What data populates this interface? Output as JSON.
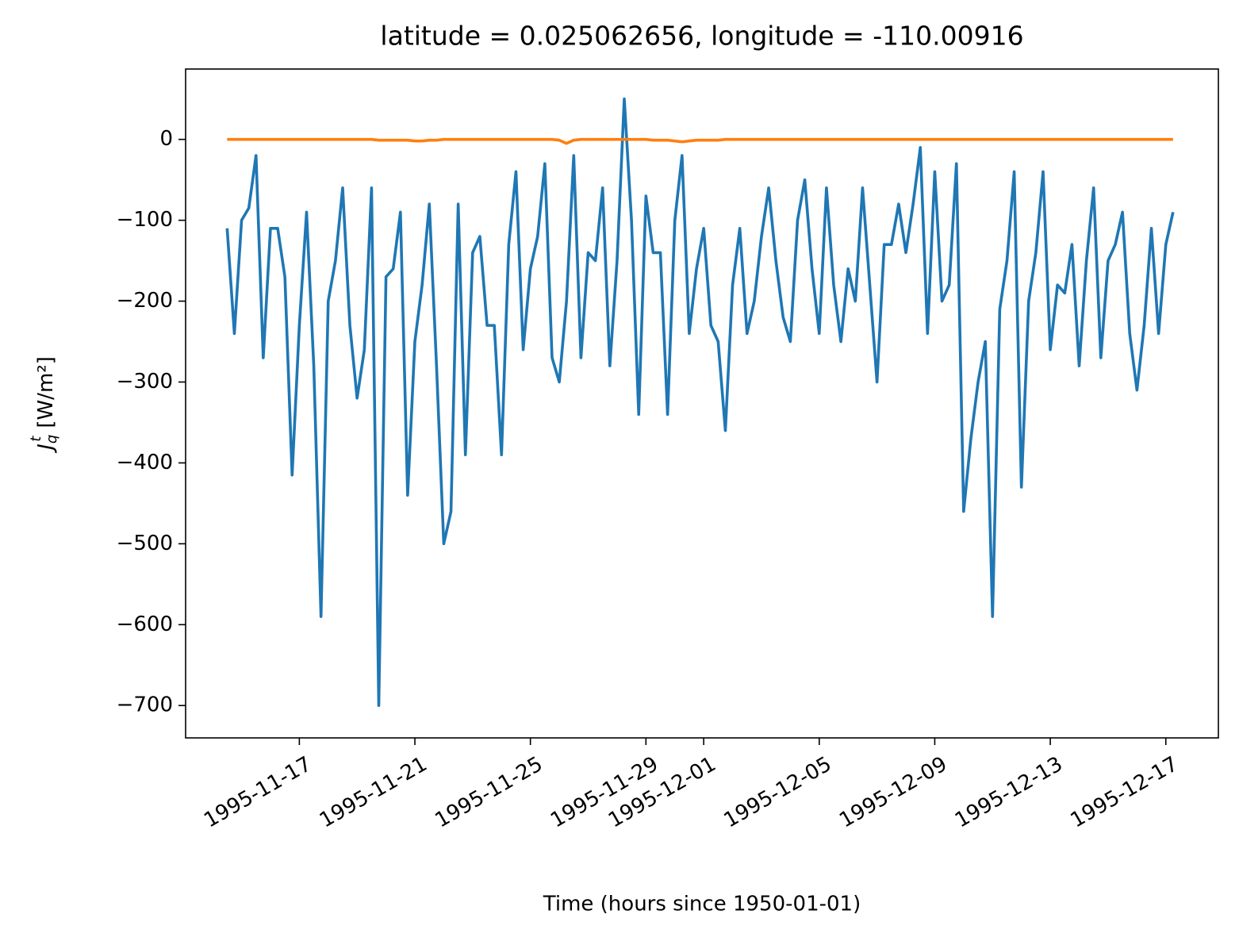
{
  "chart_data": {
    "type": "line",
    "title": "latitude = 0.025062656, longitude = -110.00916",
    "xlabel": "Time (hours since 1950-01-01)",
    "ylabel": {
      "symbol": "J",
      "sub": "q",
      "sup": "t",
      "unit": "[W/m²]"
    },
    "x": [
      "1995-11-14 12:00",
      "1995-11-14 18:00",
      "1995-11-15 00:00",
      "1995-11-15 06:00",
      "1995-11-15 12:00",
      "1995-11-15 18:00",
      "1995-11-16 00:00",
      "1995-11-16 06:00",
      "1995-11-16 12:00",
      "1995-11-16 18:00",
      "1995-11-17 00:00",
      "1995-11-17 06:00",
      "1995-11-17 12:00",
      "1995-11-17 18:00",
      "1995-11-18 00:00",
      "1995-11-18 06:00",
      "1995-11-18 12:00",
      "1995-11-18 18:00",
      "1995-11-19 00:00",
      "1995-11-19 06:00",
      "1995-11-19 12:00",
      "1995-11-19 18:00",
      "1995-11-20 00:00",
      "1995-11-20 06:00",
      "1995-11-20 12:00",
      "1995-11-20 18:00",
      "1995-11-21 00:00",
      "1995-11-21 06:00",
      "1995-11-21 12:00",
      "1995-11-21 18:00",
      "1995-11-22 00:00",
      "1995-11-22 06:00",
      "1995-11-22 12:00",
      "1995-11-22 18:00",
      "1995-11-23 00:00",
      "1995-11-23 06:00",
      "1995-11-23 12:00",
      "1995-11-23 18:00",
      "1995-11-24 00:00",
      "1995-11-24 06:00",
      "1995-11-24 12:00",
      "1995-11-24 18:00",
      "1995-11-25 00:00",
      "1995-11-25 06:00",
      "1995-11-25 12:00",
      "1995-11-25 18:00",
      "1995-11-26 00:00",
      "1995-11-26 06:00",
      "1995-11-26 12:00",
      "1995-11-26 18:00",
      "1995-11-27 00:00",
      "1995-11-27 06:00",
      "1995-11-27 12:00",
      "1995-11-27 18:00",
      "1995-11-28 00:00",
      "1995-11-28 06:00",
      "1995-11-28 12:00",
      "1995-11-28 18:00",
      "1995-11-29 00:00",
      "1995-11-29 06:00",
      "1995-11-29 12:00",
      "1995-11-29 18:00",
      "1995-11-30 00:00",
      "1995-11-30 06:00",
      "1995-11-30 12:00",
      "1995-11-30 18:00",
      "1995-12-01 00:00",
      "1995-12-01 06:00",
      "1995-12-01 12:00",
      "1995-12-01 18:00",
      "1995-12-02 00:00",
      "1995-12-02 06:00",
      "1995-12-02 12:00",
      "1995-12-02 18:00",
      "1995-12-03 00:00",
      "1995-12-03 06:00",
      "1995-12-03 12:00",
      "1995-12-03 18:00",
      "1995-12-04 00:00",
      "1995-12-04 06:00",
      "1995-12-04 12:00",
      "1995-12-04 18:00",
      "1995-12-05 00:00",
      "1995-12-05 06:00",
      "1995-12-05 12:00",
      "1995-12-05 18:00",
      "1995-12-06 00:00",
      "1995-12-06 06:00",
      "1995-12-06 12:00",
      "1995-12-06 18:00",
      "1995-12-07 00:00",
      "1995-12-07 06:00",
      "1995-12-07 12:00",
      "1995-12-07 18:00",
      "1995-12-08 00:00",
      "1995-12-08 06:00",
      "1995-12-08 12:00",
      "1995-12-08 18:00",
      "1995-12-09 00:00",
      "1995-12-09 06:00",
      "1995-12-09 12:00",
      "1995-12-09 18:00",
      "1995-12-10 00:00",
      "1995-12-10 06:00",
      "1995-12-10 12:00",
      "1995-12-10 18:00",
      "1995-12-11 00:00",
      "1995-12-11 06:00",
      "1995-12-11 12:00",
      "1995-12-11 18:00",
      "1995-12-12 00:00",
      "1995-12-12 06:00",
      "1995-12-12 12:00",
      "1995-12-12 18:00",
      "1995-12-13 00:00",
      "1995-12-13 06:00",
      "1995-12-13 12:00",
      "1995-12-13 18:00",
      "1995-12-14 00:00",
      "1995-12-14 06:00",
      "1995-12-14 12:00",
      "1995-12-14 18:00",
      "1995-12-15 00:00",
      "1995-12-15 06:00",
      "1995-12-15 12:00",
      "1995-12-15 18:00",
      "1995-12-16 00:00",
      "1995-12-16 06:00",
      "1995-12-16 12:00",
      "1995-12-16 18:00",
      "1995-12-17 00:00",
      "1995-12-17 06:00"
    ],
    "series": [
      {
        "color": "#1f77b4",
        "values": [
          -110,
          -240,
          -100,
          -85,
          -20,
          -270,
          -110,
          -110,
          -170,
          -415,
          -230,
          -90,
          -280,
          -590,
          -200,
          -150,
          -60,
          -230,
          -320,
          -260,
          -60,
          -700,
          -170,
          -160,
          -90,
          -440,
          -250,
          -180,
          -80,
          -280,
          -500,
          -460,
          -80,
          -390,
          -140,
          -120,
          -230,
          -230,
          -390,
          -130,
          -40,
          -260,
          -160,
          -120,
          -30,
          -270,
          -300,
          -200,
          -20,
          -270,
          -140,
          -150,
          -60,
          -280,
          -150,
          50,
          -100,
          -340,
          -70,
          -140,
          -140,
          -340,
          -100,
          -20,
          -240,
          -160,
          -110,
          -230,
          -250,
          -360,
          -180,
          -110,
          -240,
          -200,
          -120,
          -60,
          -150,
          -220,
          -250,
          -100,
          -50,
          -160,
          -240,
          -60,
          -180,
          -250,
          -160,
          -200,
          -60,
          -180,
          -300,
          -130,
          -130,
          -80,
          -140,
          -80,
          -10,
          -240,
          -40,
          -200,
          -180,
          -30,
          -460,
          -370,
          -300,
          -250,
          -590,
          -210,
          -150,
          -40,
          -430,
          -200,
          -140,
          -40,
          -260,
          -180,
          -190,
          -130,
          -280,
          -150,
          -60,
          -270,
          -150,
          -130,
          -90,
          -240,
          -310,
          -230,
          -110,
          -240,
          -130,
          -90
        ]
      },
      {
        "color": "#ff7f0e",
        "values": [
          0,
          0,
          0,
          0,
          0,
          0,
          0,
          0,
          0,
          0,
          0,
          0,
          0,
          0,
          0,
          0,
          0,
          0,
          0,
          0,
          0,
          -1,
          -1,
          -1,
          -1,
          -1,
          -2,
          -2,
          -1,
          -1,
          0,
          0,
          0,
          0,
          0,
          0,
          0,
          0,
          0,
          0,
          0,
          0,
          0,
          0,
          0,
          0,
          -1,
          -5,
          -1,
          0,
          0,
          0,
          0,
          0,
          0,
          0,
          0,
          0,
          0,
          -1,
          -1,
          -1,
          -2,
          -3,
          -2,
          -1,
          -1,
          -1,
          -1,
          0,
          0,
          0,
          0,
          0,
          0,
          0,
          0,
          0,
          0,
          0,
          0,
          0,
          0,
          0,
          0,
          0,
          0,
          0,
          0,
          0,
          0,
          0,
          0,
          0,
          0,
          0,
          0,
          0,
          0,
          0,
          0,
          0,
          0,
          0,
          0,
          0,
          0,
          0,
          0,
          0,
          0,
          0,
          0,
          0,
          0,
          0,
          0,
          0,
          0,
          0,
          0,
          0,
          0,
          0,
          0,
          0,
          0,
          0,
          0,
          0,
          0,
          0
        ]
      }
    ],
    "xlim": [
      "1995-11-13 01:30",
      "1995-12-18 19:40"
    ],
    "xticks": [
      "1995-11-17",
      "1995-11-21",
      "1995-11-25",
      "1995-11-29",
      "1995-12-01",
      "1995-12-05",
      "1995-12-09",
      "1995-12-13",
      "1995-12-17"
    ],
    "ylim": [
      -740,
      87
    ],
    "yticks": [
      {
        "value": -700,
        "label": "−700"
      },
      {
        "value": -600,
        "label": "−600"
      },
      {
        "value": -500,
        "label": "−500"
      },
      {
        "value": -400,
        "label": "−400"
      },
      {
        "value": -300,
        "label": "−300"
      },
      {
        "value": -200,
        "label": "−200"
      },
      {
        "value": -100,
        "label": "−100"
      },
      0
    ],
    "grid": false
  }
}
